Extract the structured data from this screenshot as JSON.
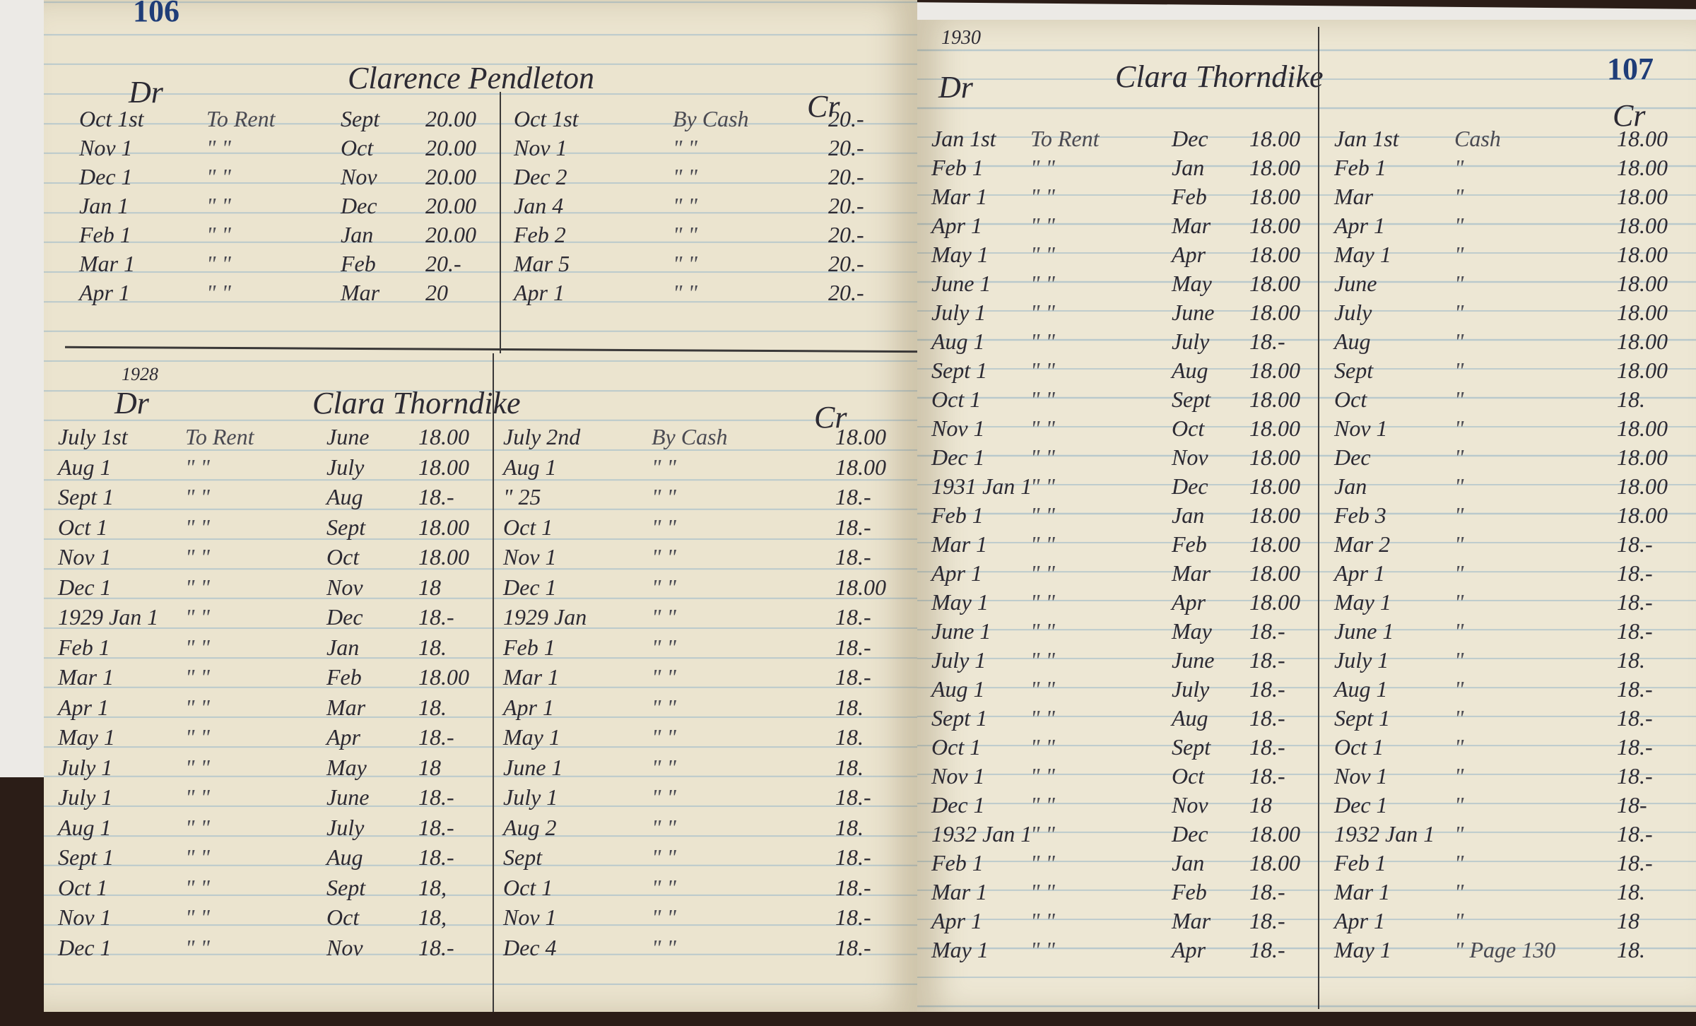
{
  "left_page": {
    "page_number": "106",
    "account_1": {
      "name": "Clarence Pendleton",
      "dr": "Dr",
      "cr": "Cr",
      "rows": [
        [
          "Oct 1st",
          "To Rent",
          "Sept",
          "20.00",
          "Oct 1st",
          "By Cash",
          "20.-"
        ],
        [
          "Nov 1",
          "\"  \"",
          "Oct",
          "20.00",
          "Nov 1",
          "\"  \"",
          "20.-"
        ],
        [
          "Dec 1",
          "\"  \"",
          "Nov",
          "20.00",
          "Dec 2",
          "\"  \"",
          "20.-"
        ],
        [
          "Jan 1",
          "\"  \"",
          "Dec",
          "20.00",
          "Jan 4",
          "\"  \"",
          "20.-"
        ],
        [
          "Feb 1",
          "\"  \"",
          "Jan",
          "20.00",
          "Feb 2",
          "\"  \"",
          "20.-"
        ],
        [
          "Mar 1",
          "\"  \"",
          "Feb",
          "20.-",
          "Mar 5",
          "\"  \"",
          "20.-"
        ],
        [
          "Apr 1",
          "\"  \"",
          "Mar",
          "20",
          "Apr 1",
          "\"  \"",
          "20.-"
        ]
      ]
    },
    "account_2": {
      "year": "1928",
      "name": "Clara Thorndike",
      "dr": "Dr",
      "cr": "Cr",
      "rows": [
        [
          "July 1st",
          "To Rent",
          "June",
          "18.00",
          "July 2nd",
          "By Cash",
          "18.00"
        ],
        [
          "Aug 1",
          "\"  \"",
          "July",
          "18.00",
          "Aug 1",
          "\"  \"",
          "18.00"
        ],
        [
          "Sept 1",
          "\"  \"",
          "Aug",
          "18.-",
          "\" 25",
          "\"  \"",
          "18.-"
        ],
        [
          "Oct 1",
          "\"  \"",
          "Sept",
          "18.00",
          "Oct 1",
          "\"  \"",
          "18.-"
        ],
        [
          "Nov 1",
          "\"  \"",
          "Oct",
          "18.00",
          "Nov 1",
          "\"  \"",
          "18.-"
        ],
        [
          "Dec 1",
          "\"  \"",
          "Nov",
          "18",
          "Dec 1",
          "\"  \"",
          "18.00"
        ],
        [
          "1929 Jan 1",
          "\"  \"",
          "Dec",
          "18.-",
          "1929 Jan",
          "\"  \"",
          "18.-"
        ],
        [
          "Feb 1",
          "\"  \"",
          "Jan",
          "18.",
          "Feb 1",
          "\"  \"",
          "18.-"
        ],
        [
          "Mar 1",
          "\"  \"",
          "Feb",
          "18.00",
          "Mar 1",
          "\"  \"",
          "18.-"
        ],
        [
          "Apr 1",
          "\"  \"",
          "Mar",
          "18.",
          "Apr 1",
          "\"  \"",
          "18."
        ],
        [
          "May 1",
          "\"  \"",
          "Apr",
          "18.-",
          "May 1",
          "\"  \"",
          "18."
        ],
        [
          "July 1",
          "\"  \"",
          "May",
          "18",
          "June 1",
          "\"  \"",
          "18."
        ],
        [
          "July 1",
          "\"  \"",
          "June",
          "18.-",
          "July 1",
          "\"  \"",
          "18.-"
        ],
        [
          "Aug 1",
          "\"  \"",
          "July",
          "18.-",
          "Aug 2",
          "\"  \"",
          "18."
        ],
        [
          "Sept 1",
          "\"  \"",
          "Aug",
          "18.-",
          "Sept",
          "\"  \"",
          "18.-"
        ],
        [
          "Oct 1",
          "\"  \"",
          "Sept",
          "18,",
          "Oct 1",
          "\"  \"",
          "18.-"
        ],
        [
          "Nov 1",
          "\"  \"",
          "Oct",
          "18,",
          "Nov 1",
          "\"  \"",
          "18.-"
        ],
        [
          "Dec 1",
          "\"  \"",
          "Nov",
          "18.-",
          "Dec 4",
          "\"  \"",
          "18.-"
        ]
      ]
    }
  },
  "right_page": {
    "page_number": "107",
    "year": "1930",
    "name": "Clara Thorndike",
    "dr": "Dr",
    "cr": "Cr",
    "rows": [
      [
        "Jan 1st",
        "To Rent",
        "Dec",
        "18.00",
        "Jan 1st",
        "Cash",
        "18.00"
      ],
      [
        "Feb 1",
        "\"  \"",
        "Jan",
        "18.00",
        "Feb 1",
        "\"",
        "18.00"
      ],
      [
        "Mar 1",
        "\"  \"",
        "Feb",
        "18.00",
        "Mar",
        "\"",
        "18.00"
      ],
      [
        "Apr 1",
        "\"  \"",
        "Mar",
        "18.00",
        "Apr 1",
        "\"",
        "18.00"
      ],
      [
        "May 1",
        "\"  \"",
        "Apr",
        "18.00",
        "May 1",
        "\"",
        "18.00"
      ],
      [
        "June 1",
        "\"  \"",
        "May",
        "18.00",
        "June",
        "\"",
        "18.00"
      ],
      [
        "July 1",
        "\"  \"",
        "June",
        "18.00",
        "July",
        "\"",
        "18.00"
      ],
      [
        "Aug 1",
        "\"  \"",
        "July",
        "18.-",
        "Aug",
        "\"",
        "18.00"
      ],
      [
        "Sept 1",
        "\"  \"",
        "Aug",
        "18.00",
        "Sept",
        "\"",
        "18.00"
      ],
      [
        "Oct 1",
        "\"  \"",
        "Sept",
        "18.00",
        "Oct",
        "\"",
        "18."
      ],
      [
        "Nov 1",
        "\"  \"",
        "Oct",
        "18.00",
        "Nov 1",
        "\"",
        "18.00"
      ],
      [
        "Dec 1",
        "\"  \"",
        "Nov",
        "18.00",
        "Dec",
        "\"",
        "18.00"
      ],
      [
        "1931 Jan 1",
        "\"  \"",
        "Dec",
        "18.00",
        "Jan",
        "\"",
        "18.00"
      ],
      [
        "Feb 1",
        "\"  \"",
        "Jan",
        "18.00",
        "Feb 3",
        "\"",
        "18.00"
      ],
      [
        "Mar 1",
        "\"  \"",
        "Feb",
        "18.00",
        "Mar 2",
        "\"",
        "18.-"
      ],
      [
        "Apr 1",
        "\"  \"",
        "Mar",
        "18.00",
        "Apr 1",
        "\"",
        "18.-"
      ],
      [
        "May 1",
        "\"  \"",
        "Apr",
        "18.00",
        "May 1",
        "\"",
        "18.-"
      ],
      [
        "June 1",
        "\"  \"",
        "May",
        "18.-",
        "June 1",
        "\"",
        "18.-"
      ],
      [
        "July 1",
        "\"  \"",
        "June",
        "18.-",
        "July 1",
        "\"",
        "18."
      ],
      [
        "Aug 1",
        "\"  \"",
        "July",
        "18.-",
        "Aug 1",
        "\"",
        "18.-"
      ],
      [
        "Sept 1",
        "\"  \"",
        "Aug",
        "18.-",
        "Sept 1",
        "\"",
        "18.-"
      ],
      [
        "Oct 1",
        "\"  \"",
        "Sept",
        "18.-",
        "Oct 1",
        "\"",
        "18.-"
      ],
      [
        "Nov 1",
        "\"  \"",
        "Oct",
        "18.-",
        "Nov 1",
        "\"",
        "18.-"
      ],
      [
        "Dec 1",
        "\"  \"",
        "Nov",
        "18",
        "Dec 1",
        "\"",
        "18-"
      ],
      [
        "1932 Jan 1",
        "\"  \"",
        "Dec",
        "18.00",
        "1932 Jan 1",
        "\"",
        "18.-"
      ],
      [
        "Feb 1",
        "\"  \"",
        "Jan",
        "18.00",
        "Feb 1",
        "\"",
        "18.-"
      ],
      [
        "Mar 1",
        "\"  \"",
        "Feb",
        "18.-",
        "Mar 1",
        "\"",
        "18."
      ],
      [
        "Apr 1",
        "\"  \"",
        "Mar",
        "18.-",
        "Apr 1",
        "\"",
        "18"
      ],
      [
        "May 1",
        "\"  \"",
        "Apr",
        "18.-",
        "May 1",
        "\" Page 130",
        "18."
      ]
    ]
  }
}
